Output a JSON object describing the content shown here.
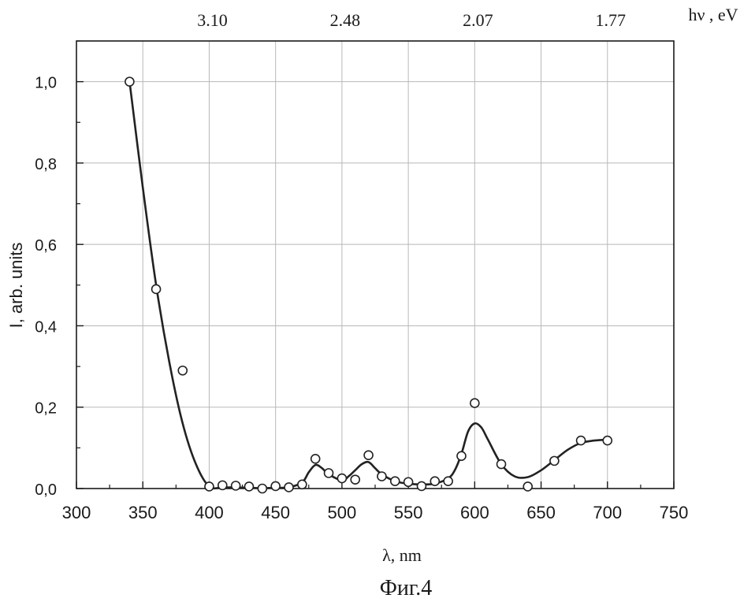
{
  "chart_data": {
    "type": "scatter",
    "ylabel": "I, arb. units",
    "xlabel": "λ, nm",
    "top_axis_label": "hν , eV",
    "caption": "Фиг.4",
    "xlim": [
      300,
      750
    ],
    "ylim": [
      0,
      1.1
    ],
    "x_ticks": [
      300,
      350,
      400,
      450,
      500,
      550,
      600,
      650,
      700,
      750
    ],
    "x_tick_labels": [
      "300",
      "350",
      "400",
      "450",
      "500",
      "550",
      "600",
      "650",
      "700",
      "750"
    ],
    "y_ticks": [
      0,
      0.2,
      0.4,
      0.6,
      0.8,
      1.0
    ],
    "y_tick_labels": [
      "0,0",
      "0,2",
      "0,4",
      "0,6",
      "0,8",
      "1,0"
    ],
    "top_ticks": [
      {
        "x": 400,
        "label": "3.10"
      },
      {
        "x": 500,
        "label": "2.48"
      },
      {
        "x": 600,
        "label": "2.07"
      },
      {
        "x": 700,
        "label": "1.77"
      }
    ],
    "grid": true,
    "series": [
      {
        "style": "markers",
        "x": [
          340,
          360,
          380,
          400,
          410,
          420,
          430,
          440,
          450,
          460,
          470,
          480,
          490,
          500,
          510,
          520,
          530,
          540,
          550,
          560,
          570,
          580,
          590,
          600,
          620,
          640,
          660,
          680,
          700
        ],
        "y": [
          1.0,
          0.49,
          0.29,
          0.005,
          0.008,
          0.007,
          0.005,
          0.0,
          0.006,
          0.003,
          0.01,
          0.073,
          0.038,
          0.025,
          0.022,
          0.082,
          0.03,
          0.018,
          0.016,
          0.006,
          0.018,
          0.018,
          0.08,
          0.21,
          0.06,
          0.005,
          0.068,
          0.118,
          0.118
        ]
      },
      {
        "style": "line",
        "x": [
          340,
          350,
          360,
          370,
          380,
          390,
          400,
          410,
          420,
          430,
          440,
          450,
          460,
          470,
          475,
          480,
          485,
          490,
          500,
          505,
          510,
          515,
          520,
          525,
          530,
          540,
          550,
          560,
          570,
          580,
          585,
          590,
          595,
          600,
          605,
          610,
          620,
          630,
          640,
          650,
          660,
          670,
          680,
          690,
          700
        ],
        "y": [
          1.0,
          0.74,
          0.5,
          0.31,
          0.16,
          0.06,
          0.005,
          0.003,
          0.003,
          0.002,
          0.001,
          0.002,
          0.003,
          0.015,
          0.04,
          0.058,
          0.05,
          0.035,
          0.02,
          0.03,
          0.045,
          0.06,
          0.065,
          0.05,
          0.035,
          0.018,
          0.012,
          0.01,
          0.012,
          0.025,
          0.045,
          0.085,
          0.14,
          0.16,
          0.15,
          0.12,
          0.06,
          0.03,
          0.028,
          0.045,
          0.07,
          0.095,
          0.112,
          0.118,
          0.12
        ]
      }
    ]
  }
}
